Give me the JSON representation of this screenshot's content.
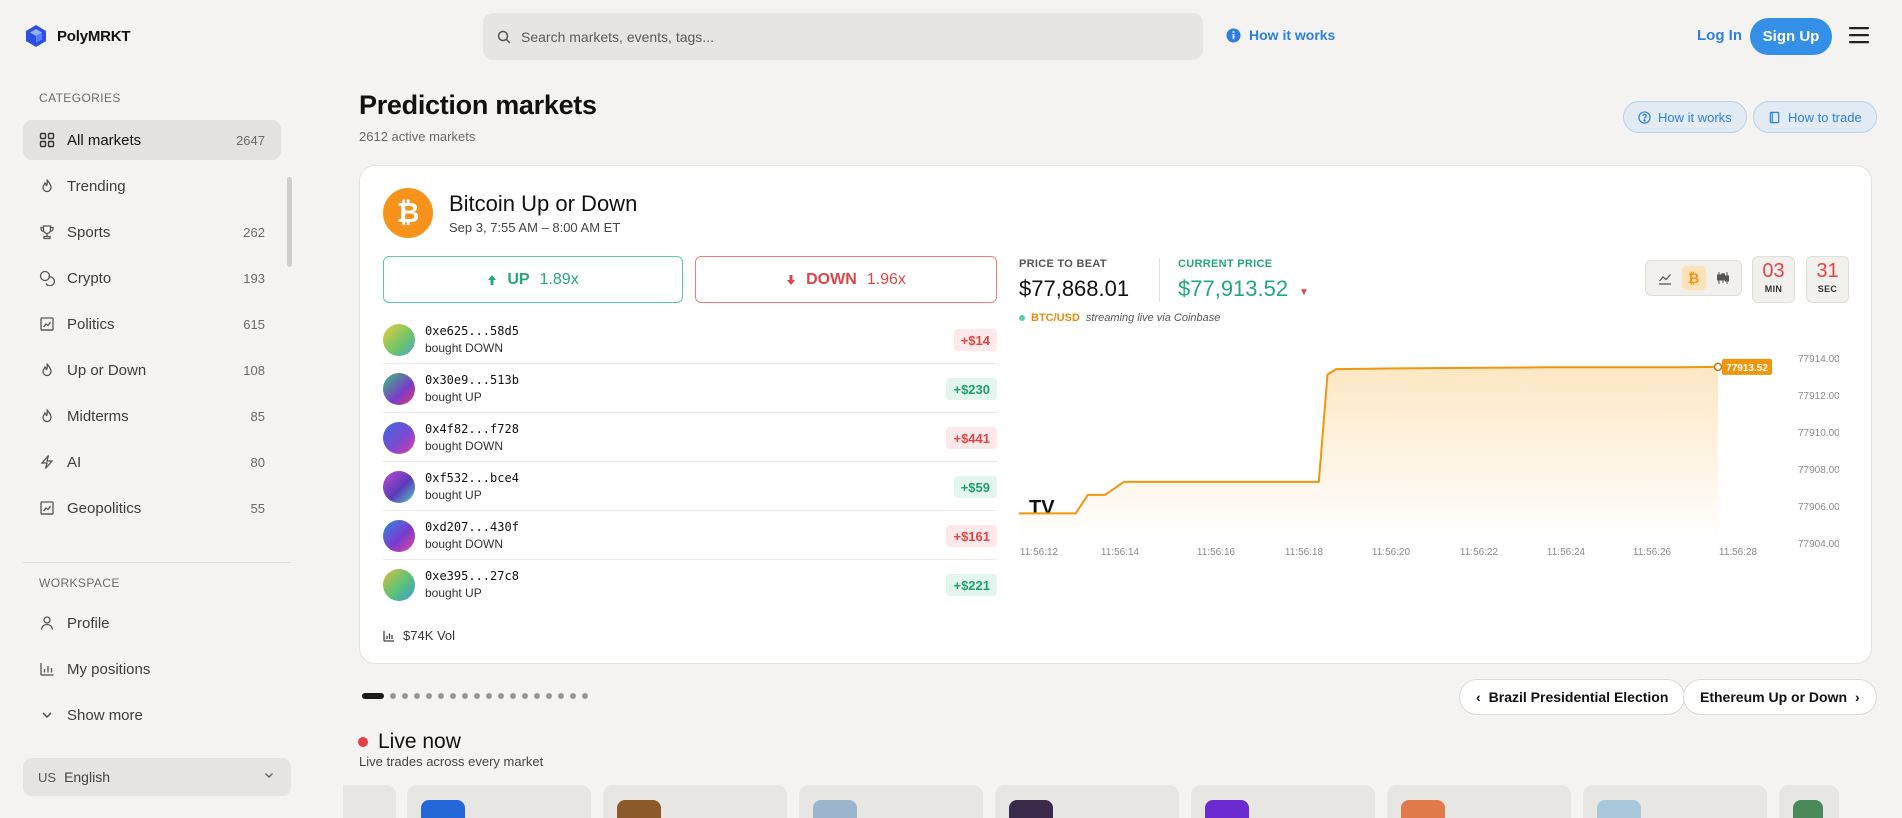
{
  "brand": {
    "name": "PolyMRKT"
  },
  "header": {
    "search_placeholder": "Search markets, events, tags...",
    "how_it_works": "How it works",
    "login": "Log In",
    "signup": "Sign Up"
  },
  "sidebar": {
    "categories_label": "CATEGORIES",
    "items": [
      {
        "label": "All markets",
        "count": "2647",
        "icon": "grid-icon"
      },
      {
        "label": "Trending",
        "count": "",
        "icon": "flame-icon"
      },
      {
        "label": "Sports",
        "count": "262",
        "icon": "trophy-icon"
      },
      {
        "label": "Crypto",
        "count": "193",
        "icon": "coins-icon"
      },
      {
        "label": "Politics",
        "count": "615",
        "icon": "chart-icon"
      },
      {
        "label": "Up or Down",
        "count": "108",
        "icon": "flame-icon"
      },
      {
        "label": "Midterms",
        "count": "85",
        "icon": "flame-icon"
      },
      {
        "label": "AI",
        "count": "80",
        "icon": "bolt-icon"
      },
      {
        "label": "Geopolitics",
        "count": "55",
        "icon": "chart-icon"
      }
    ],
    "workspace_label": "WORKSPACE",
    "workspace": [
      {
        "label": "Profile",
        "icon": "user-icon"
      },
      {
        "label": "My positions",
        "icon": "bar-chart-icon"
      },
      {
        "label": "Show more",
        "icon": "chevron-down-icon"
      }
    ],
    "language": {
      "code": "US",
      "label": "English"
    }
  },
  "page": {
    "title": "Prediction markets",
    "subtitle": "2612 active markets",
    "how_it_works": "How it works",
    "how_to_trade": "How to trade"
  },
  "market": {
    "title": "Bitcoin Up or Down",
    "time": "Sep 3, 7:55 AM – 8:00 AM ET",
    "up_label": "UP",
    "up_odds": "1.89x",
    "down_label": "DOWN",
    "down_odds": "1.96x",
    "trades": [
      {
        "addr": "0xe625...58d5",
        "action": "bought DOWN",
        "amount": "+$14",
        "side": "down"
      },
      {
        "addr": "0x30e9...513b",
        "action": "bought UP",
        "amount": "+$230",
        "side": "up"
      },
      {
        "addr": "0x4f82...f728",
        "action": "bought DOWN",
        "amount": "+$441",
        "side": "down"
      },
      {
        "addr": "0xf532...bce4",
        "action": "bought UP",
        "amount": "+$59",
        "side": "up"
      },
      {
        "addr": "0xd207...430f",
        "action": "bought DOWN",
        "amount": "+$161",
        "side": "down"
      },
      {
        "addr": "0xe395...27c8",
        "action": "bought UP",
        "amount": "+$221",
        "side": "up"
      }
    ],
    "volume": "$74K Vol",
    "price_to_beat_label": "PRICE TO BEAT",
    "price_to_beat": "$77,868.01",
    "current_price_label": "CURRENT PRICE",
    "current_price": "$77,913.52",
    "feed_pair": "BTC/USD",
    "feed_note": "streaming live via Coinbase",
    "timer_min": "03",
    "timer_min_label": "MIN",
    "timer_sec": "31",
    "timer_sec_label": "SEC"
  },
  "chart_data": {
    "type": "line",
    "x": [
      "11:56:12",
      "11:56:14",
      "11:56:16",
      "11:56:18",
      "11:56:20",
      "11:56:22",
      "11:56:24",
      "11:56:26",
      "11:56:28"
    ],
    "y_ticks": [
      "77914.00",
      "77912.00",
      "77910.00",
      "77908.00",
      "77906.00",
      "77904.00"
    ],
    "ylim": [
      77904,
      77914
    ],
    "series": [
      {
        "points": [
          [
            0,
            77905.6
          ],
          [
            0.7,
            77905.6
          ],
          [
            0.85,
            77906.6
          ],
          [
            1.05,
            77906.6
          ],
          [
            1.25,
            77907.3
          ],
          [
            2.0,
            77907.3
          ],
          [
            3.4,
            77907.3
          ],
          [
            3.5,
            77913.1
          ],
          [
            3.6,
            77913.4
          ],
          [
            4.5,
            77913.45
          ],
          [
            6.0,
            77913.5
          ],
          [
            7.6,
            77913.5
          ],
          [
            8.4,
            77913.52
          ]
        ]
      }
    ],
    "last_value_label": "77913.52",
    "colors": {
      "line": "#f0960e",
      "fill_top": "#fde7c4",
      "fill_bottom": "#ffffff"
    }
  },
  "carousel": {
    "dot_count": 18,
    "prev_label": "Brazil Presidential Election",
    "next_label": "Ethereum Up or Down"
  },
  "live": {
    "title": "Live now",
    "subtitle": "Live trades across every market"
  },
  "colors": {
    "accent": "#3490e6",
    "up": "#23a878",
    "down": "#e04545",
    "btc": "#f7931a"
  }
}
